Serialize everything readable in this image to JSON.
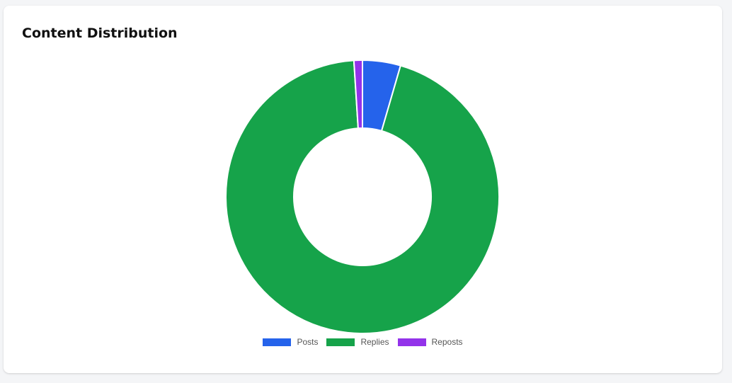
{
  "card": {
    "title": "Content Distribution"
  },
  "chart_data": {
    "type": "pie",
    "variant": "doughnut",
    "title": "Content Distribution",
    "categories": [
      "Posts",
      "Replies",
      "Reposts"
    ],
    "values": [
      4.5,
      94.5,
      1.0
    ],
    "colors": [
      "#2563eb",
      "#16a34a",
      "#9333ea"
    ],
    "start_angle_deg": 0,
    "legend_position": "bottom"
  }
}
